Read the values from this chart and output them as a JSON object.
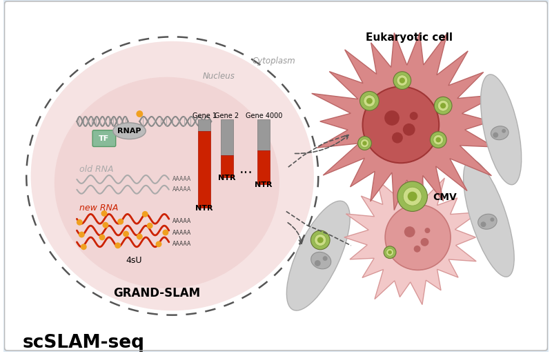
{
  "title": "scSLAM-seq",
  "background_color": "#dce8f2",
  "grand_slam_label": "GRAND-SLAM",
  "nucleus_label": "Nucleus",
  "cytoplasm_label": "Cytoplasm",
  "new_rna_color": "#cc2200",
  "old_rna_color": "#aaaaaa",
  "orange_dot_color": "#f0a020",
  "4su_label": "4sU",
  "new_rna_label": "new RNA",
  "old_rna_label": "old RNA",
  "ntr_bar_red": "#cc2200",
  "ntr_bar_gray": "#999999",
  "ntr_label": "NTR",
  "gene_labels": [
    "Gene 1",
    "Gene 2",
    "Gene 4000"
  ],
  "tf_color": "#88bb99",
  "tf_label": "TF",
  "rnap_label": "RNAP",
  "cmv_color": "#99bb55",
  "cmv_label": "CMV",
  "eukaryotic_label": "Eukaryotic cell",
  "dashed_circle_color": "#555555"
}
